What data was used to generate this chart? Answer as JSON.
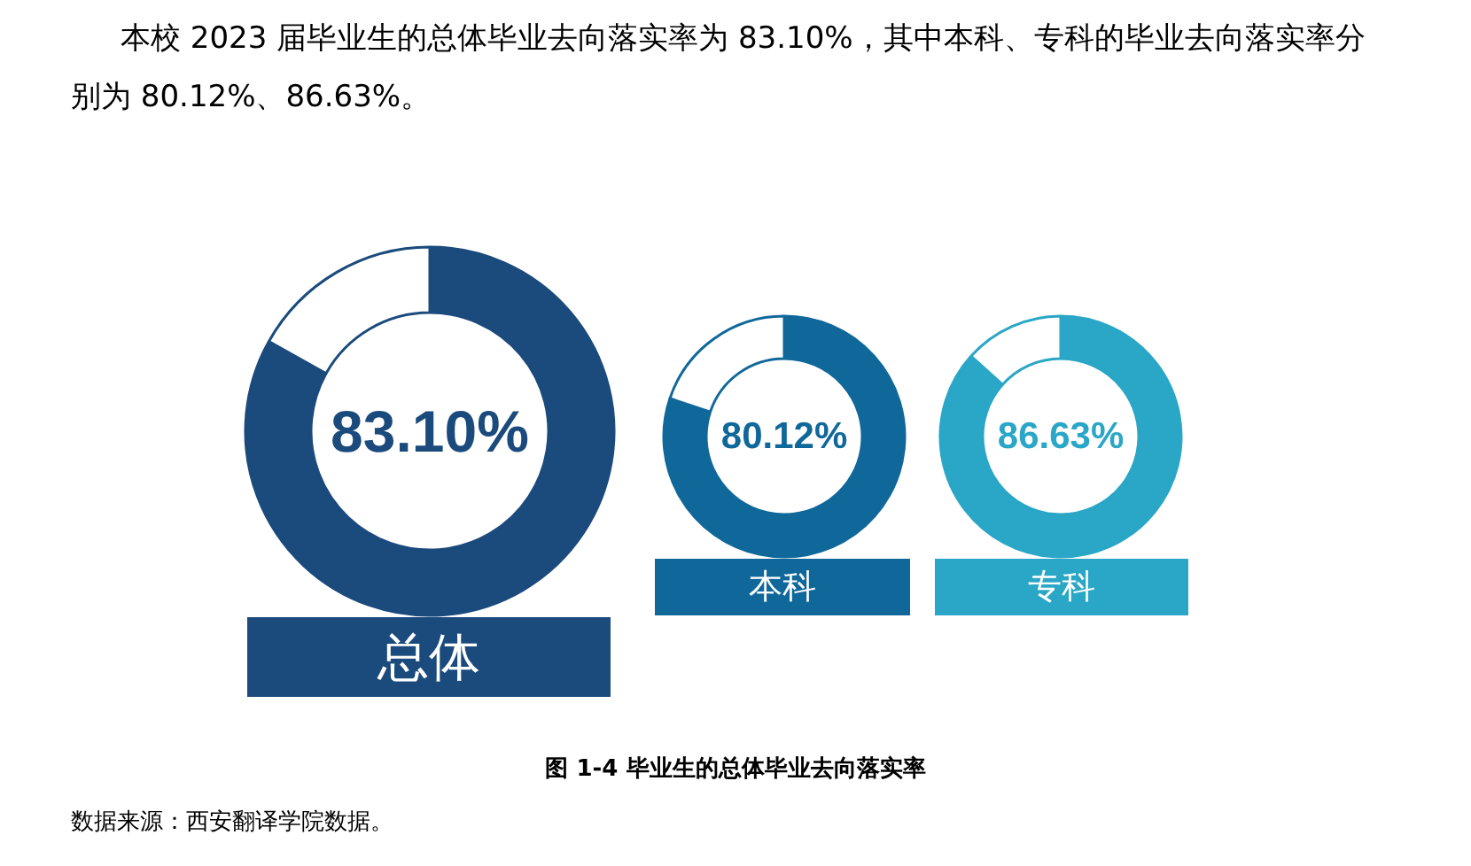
{
  "chart_data": [
    {
      "type": "donut",
      "title": "总体",
      "categories": [
        null,
        null
      ],
      "values": [
        83.1,
        16.9
      ],
      "colors": [
        "#1b4a7c",
        "#ffffff"
      ],
      "value_labels": [
        "83.10%",
        null
      ],
      "annotations": [
        "本校 2023 届毕业生的总体毕业去向落实率为 83.10%，其中本科、专科的毕业去向落实率分别为 80.12%、86.63%。",
        "图 1-4 毕业生的总体毕业去向落实率",
        "数据来源：西安翻译学院数据。"
      ]
    },
    {
      "type": "donut",
      "title": "本科",
      "categories": [
        null,
        null
      ],
      "values": [
        80.12,
        19.88
      ],
      "colors": [
        "#10689a",
        "#ffffff"
      ],
      "value_labels": [
        "80.12%",
        null
      ]
    },
    {
      "type": "donut",
      "title": "专科",
      "categories": [
        null,
        null
      ],
      "values": [
        86.63,
        13.37
      ],
      "colors": [
        "#2aa6c6",
        "#ffffff"
      ],
      "value_labels": [
        "86.63%",
        null
      ]
    }
  ]
}
